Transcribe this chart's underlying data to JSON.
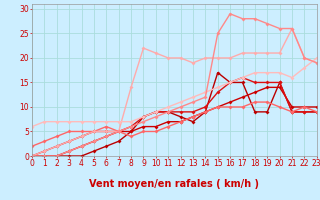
{
  "xlabel": "Vent moyen/en rafales ( km/h )",
  "background_color": "#cceeff",
  "grid_color": "#aadddd",
  "x_ticks": [
    0,
    1,
    2,
    3,
    4,
    5,
    6,
    7,
    8,
    9,
    10,
    11,
    12,
    13,
    14,
    15,
    16,
    17,
    18,
    19,
    20,
    21,
    22,
    23
  ],
  "y_ticks": [
    0,
    5,
    10,
    15,
    20,
    25,
    30
  ],
  "xlim": [
    0,
    23
  ],
  "ylim": [
    0,
    31
  ],
  "series": [
    {
      "x": [
        0,
        1,
        2,
        3,
        4,
        5,
        6,
        7,
        8,
        9,
        10,
        11,
        12,
        13,
        14,
        15,
        16,
        17,
        18,
        19,
        20,
        21,
        22,
        23
      ],
      "y": [
        0,
        0,
        0,
        0,
        0,
        1,
        2,
        3,
        5,
        8,
        9,
        9,
        8,
        7,
        9,
        17,
        15,
        15,
        9,
        9,
        15,
        9,
        9,
        9
      ],
      "color": "#bb0000",
      "linewidth": 1.0
    },
    {
      "x": [
        0,
        1,
        2,
        3,
        4,
        5,
        6,
        7,
        8,
        9,
        10,
        11,
        12,
        13,
        14,
        15,
        16,
        17,
        18,
        19,
        20,
        21,
        22,
        23
      ],
      "y": [
        0,
        0,
        0,
        1,
        2,
        3,
        4,
        5,
        5,
        6,
        6,
        7,
        7,
        8,
        9,
        10,
        11,
        12,
        13,
        14,
        14,
        10,
        10,
        10
      ],
      "color": "#cc0000",
      "linewidth": 1.0
    },
    {
      "x": [
        0,
        1,
        2,
        3,
        4,
        5,
        6,
        7,
        8,
        9,
        10,
        11,
        12,
        13,
        14,
        15,
        16,
        17,
        18,
        19,
        20,
        21,
        22,
        23
      ],
      "y": [
        0,
        1,
        2,
        3,
        4,
        5,
        5,
        5,
        6,
        8,
        9,
        9,
        9,
        9,
        10,
        13,
        15,
        16,
        15,
        15,
        15,
        9,
        9,
        9
      ],
      "color": "#dd1111",
      "linewidth": 1.0
    },
    {
      "x": [
        0,
        1,
        2,
        3,
        4,
        5,
        6,
        7,
        8,
        9,
        10,
        11,
        12,
        13,
        14,
        15,
        16,
        17,
        18,
        19,
        20,
        21,
        22,
        23
      ],
      "y": [
        2,
        3,
        4,
        5,
        5,
        5,
        6,
        5,
        4,
        5,
        5,
        6,
        7,
        8,
        9,
        10,
        10,
        10,
        11,
        11,
        10,
        9,
        10,
        9
      ],
      "color": "#ff6666",
      "linewidth": 1.0
    },
    {
      "x": [
        0,
        1,
        2,
        3,
        4,
        5,
        6,
        7,
        8,
        9,
        10,
        11,
        12,
        13,
        14,
        15,
        16,
        17,
        18,
        19,
        20,
        21,
        22,
        23
      ],
      "y": [
        0,
        1,
        2,
        3,
        4,
        5,
        5,
        5,
        14,
        22,
        21,
        20,
        20,
        19,
        20,
        20,
        20,
        21,
        21,
        21,
        21,
        26,
        20,
        19
      ],
      "color": "#ffaaaa",
      "linewidth": 1.0
    },
    {
      "x": [
        0,
        1,
        2,
        3,
        4,
        5,
        6,
        7,
        8,
        9,
        10,
        11,
        12,
        13,
        14,
        15,
        16,
        17,
        18,
        19,
        20,
        21,
        22,
        23
      ],
      "y": [
        6,
        7,
        7,
        7,
        7,
        7,
        7,
        7,
        7,
        8,
        9,
        10,
        11,
        12,
        13,
        14,
        15,
        16,
        17,
        17,
        17,
        16,
        18,
        20
      ],
      "color": "#ffbbbb",
      "linewidth": 1.0
    },
    {
      "x": [
        0,
        1,
        2,
        3,
        4,
        5,
        6,
        7,
        8,
        9,
        10,
        11,
        12,
        13,
        14,
        15,
        16,
        17,
        18,
        19,
        20,
        21,
        22,
        23
      ],
      "y": [
        0,
        0,
        0,
        1,
        2,
        3,
        4,
        5,
        6,
        7,
        8,
        9,
        10,
        11,
        12,
        25,
        29,
        28,
        28,
        27,
        26,
        26,
        20,
        19
      ],
      "color": "#ff8888",
      "linewidth": 1.0
    }
  ],
  "arrow_color": "#cc0000",
  "xlabel_color": "#cc0000",
  "xlabel_fontsize": 7,
  "tick_color": "#cc0000",
  "tick_fontsize": 5.5,
  "marker": "D",
  "markersize": 2.0
}
